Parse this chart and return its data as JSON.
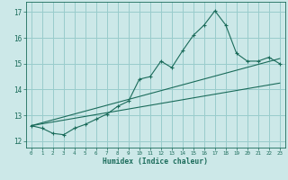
{
  "xlabel": "Humidex (Indice chaleur)",
  "bg_color": "#cce8e8",
  "grid_color": "#99cccc",
  "line_color": "#1a6b5a",
  "xlim": [
    -0.5,
    23.5
  ],
  "ylim": [
    11.75,
    17.4
  ],
  "xticks": [
    0,
    1,
    2,
    3,
    4,
    5,
    6,
    7,
    8,
    9,
    10,
    11,
    12,
    13,
    14,
    15,
    16,
    17,
    18,
    19,
    20,
    21,
    22,
    23
  ],
  "yticks": [
    12,
    13,
    14,
    15,
    16,
    17
  ],
  "main_x": [
    0,
    1,
    2,
    3,
    4,
    5,
    6,
    7,
    8,
    9,
    10,
    11,
    12,
    13,
    14,
    15,
    16,
    17,
    18,
    19,
    20,
    21,
    22,
    23
  ],
  "main_y": [
    12.6,
    12.5,
    12.3,
    12.25,
    12.5,
    12.65,
    12.85,
    13.05,
    13.35,
    13.55,
    14.4,
    14.5,
    15.1,
    14.85,
    15.5,
    16.1,
    16.5,
    17.05,
    16.5,
    15.4,
    15.1,
    15.1,
    15.25,
    15.0
  ],
  "line1_x": [
    0,
    23
  ],
  "line1_y": [
    12.6,
    14.25
  ],
  "line2_x": [
    0,
    23
  ],
  "line2_y": [
    12.6,
    15.2
  ]
}
